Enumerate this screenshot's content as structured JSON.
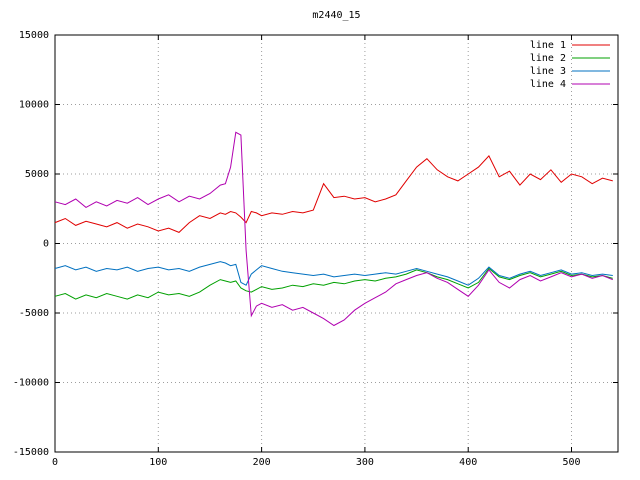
{
  "window": {
    "background": "#ffffff",
    "border_color": "#000000",
    "grid_color": "#9e9e9e"
  },
  "chart_data": {
    "type": "line",
    "title": "m2440_15",
    "xlabel": "",
    "ylabel": "",
    "xlim": [
      0,
      545
    ],
    "ylim": [
      -15000,
      15000
    ],
    "xticks": [
      0,
      100,
      200,
      300,
      400,
      500
    ],
    "yticks": [
      -15000,
      -10000,
      -5000,
      0,
      5000,
      10000,
      15000
    ],
    "grid": true,
    "legend_position": "top-right",
    "x": [
      0,
      10,
      20,
      30,
      40,
      50,
      60,
      70,
      80,
      90,
      100,
      110,
      120,
      130,
      140,
      150,
      160,
      165,
      170,
      175,
      180,
      185,
      190,
      195,
      200,
      210,
      220,
      230,
      240,
      250,
      260,
      270,
      280,
      290,
      300,
      310,
      320,
      330,
      340,
      350,
      360,
      370,
      380,
      390,
      400,
      410,
      420,
      430,
      440,
      450,
      460,
      470,
      480,
      490,
      500,
      510,
      520,
      530,
      540
    ],
    "series": [
      {
        "name": "line 1",
        "color": "#e00000",
        "values": [
          1500,
          1800,
          1300,
          1600,
          1400,
          1200,
          1500,
          1100,
          1400,
          1200,
          900,
          1100,
          800,
          1500,
          2000,
          1800,
          2200,
          2100,
          2300,
          2200,
          1900,
          1500,
          2300,
          2200,
          2000,
          2200,
          2100,
          2300,
          2200,
          2400,
          4300,
          3300,
          3400,
          3200,
          3300,
          3000,
          3200,
          3500,
          4500,
          5500,
          6100,
          5300,
          4800,
          4500,
          5000,
          5500,
          6300,
          4800,
          5200,
          4200,
          5000,
          4600,
          5300,
          4400,
          5000,
          4800,
          4300,
          4700,
          4500
        ]
      },
      {
        "name": "line 2",
        "color": "#00a000",
        "values": [
          -3800,
          -3600,
          -4000,
          -3700,
          -3900,
          -3600,
          -3800,
          -4000,
          -3700,
          -3900,
          -3500,
          -3700,
          -3600,
          -3800,
          -3500,
          -3000,
          -2600,
          -2700,
          -2800,
          -2700,
          -3200,
          -3400,
          -3500,
          -3300,
          -3100,
          -3300,
          -3200,
          -3000,
          -3100,
          -2900,
          -3000,
          -2800,
          -2900,
          -2700,
          -2600,
          -2700,
          -2500,
          -2400,
          -2200,
          -1900,
          -2100,
          -2400,
          -2600,
          -2900,
          -3200,
          -2800,
          -1800,
          -2400,
          -2600,
          -2300,
          -2100,
          -2400,
          -2200,
          -2000,
          -2300,
          -2200,
          -2400,
          -2300,
          -2500
        ]
      },
      {
        "name": "line 3",
        "color": "#0070c0",
        "values": [
          -1800,
          -1600,
          -1900,
          -1700,
          -2000,
          -1800,
          -1900,
          -1700,
          -2000,
          -1800,
          -1700,
          -1900,
          -1800,
          -2000,
          -1700,
          -1500,
          -1300,
          -1400,
          -1600,
          -1500,
          -2800,
          -3000,
          -2200,
          -1900,
          -1600,
          -1800,
          -2000,
          -2100,
          -2200,
          -2300,
          -2200,
          -2400,
          -2300,
          -2200,
          -2300,
          -2200,
          -2100,
          -2200,
          -2000,
          -1800,
          -2000,
          -2200,
          -2400,
          -2700,
          -3000,
          -2500,
          -1700,
          -2300,
          -2500,
          -2200,
          -2000,
          -2300,
          -2100,
          -1900,
          -2200,
          -2100,
          -2300,
          -2200,
          -2300
        ]
      },
      {
        "name": "line 4",
        "color": "#b000b0",
        "values": [
          3000,
          2800,
          3200,
          2600,
          3000,
          2700,
          3100,
          2900,
          3300,
          2800,
          3200,
          3500,
          3000,
          3400,
          3200,
          3600,
          4200,
          4300,
          5500,
          8000,
          7800,
          -500,
          -5200,
          -4500,
          -4300,
          -4600,
          -4400,
          -4800,
          -4600,
          -5000,
          -5400,
          -5900,
          -5500,
          -4800,
          -4300,
          -3900,
          -3500,
          -2900,
          -2600,
          -2300,
          -2100,
          -2500,
          -2800,
          -3300,
          -3800,
          -3000,
          -1900,
          -2800,
          -3200,
          -2600,
          -2300,
          -2700,
          -2400,
          -2100,
          -2400,
          -2200,
          -2500,
          -2300,
          -2600
        ]
      }
    ]
  }
}
